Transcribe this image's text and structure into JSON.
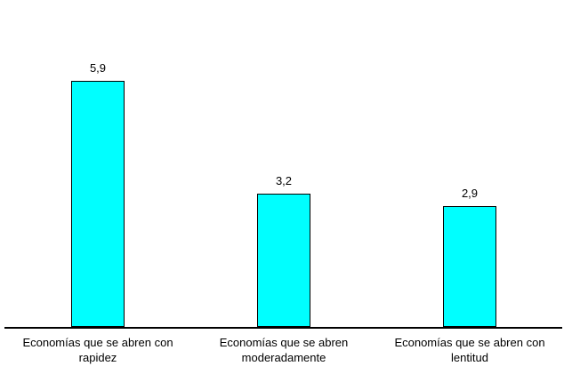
{
  "chart_data": {
    "type": "bar",
    "title": "",
    "categories": [
      "Economías que se abren con rapidez",
      "Economías que se abren moderadamente",
      "Economías que se abren con lentitud"
    ],
    "category_lines": [
      [
        "Economías que se abren con",
        "rapidez"
      ],
      [
        "Economías que se abren",
        "moderadamente"
      ],
      [
        "Economías que se abren con",
        "lentitud"
      ]
    ],
    "values": [
      5.9,
      3.2,
      2.9
    ],
    "value_labels": [
      "5,9",
      "3,2",
      "2,9"
    ],
    "xlabel": "",
    "ylabel": "",
    "ylim": [
      0,
      6.5
    ],
    "grid": false,
    "legend": false,
    "bar_color": "#00FFFF",
    "bar_border_color": "#000000",
    "axis_color": "#000000",
    "text_color": "#000000",
    "background_color": "#FFFFFF"
  }
}
